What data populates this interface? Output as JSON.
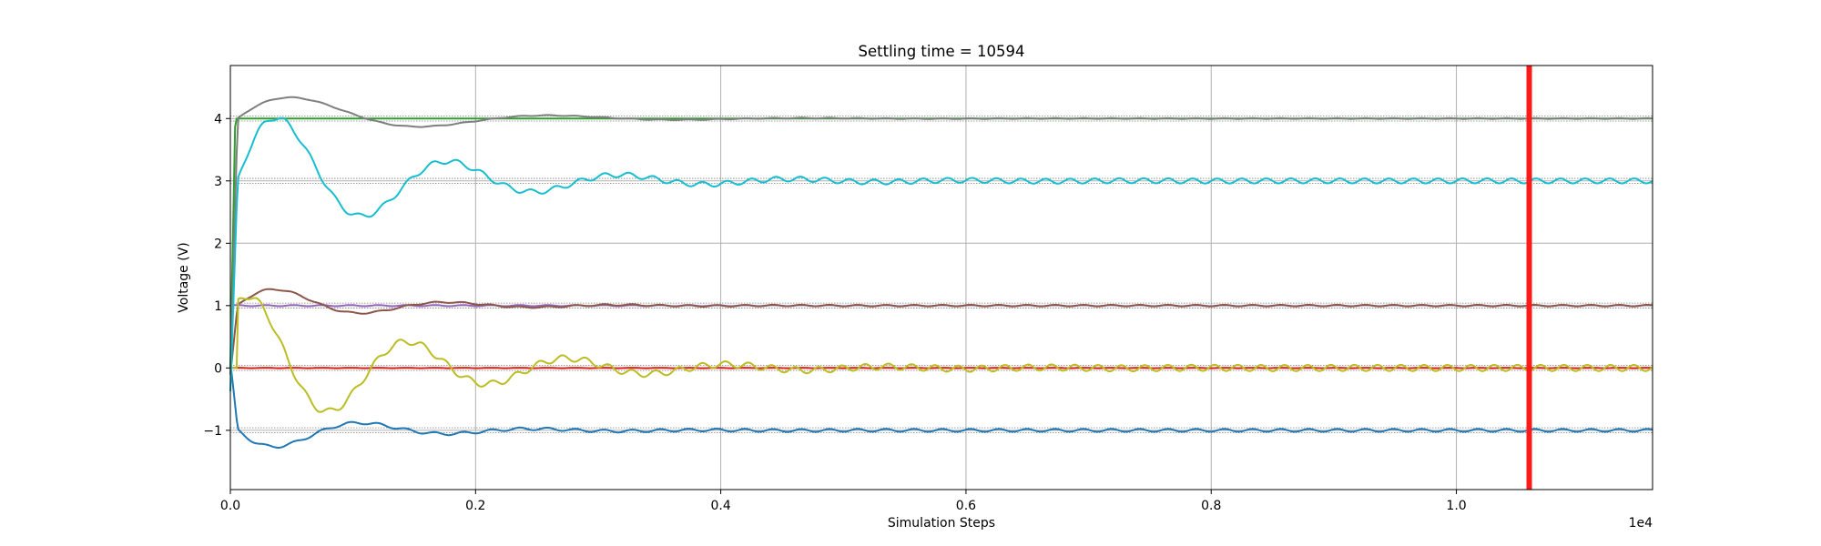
{
  "chart_data": {
    "type": "line",
    "title": "Settling time = 10594",
    "xlabel": "Simulation Steps",
    "ylabel": "Voltage (V)",
    "x_offset_text": "1e4",
    "xlim": [
      0,
      11600
    ],
    "ylim": [
      -1.95,
      4.85
    ],
    "x_ticks": [
      0,
      2000,
      4000,
      6000,
      8000,
      10000
    ],
    "x_tick_labels": [
      "0.0",
      "0.2",
      "0.4",
      "0.6",
      "0.8",
      "1.0"
    ],
    "y_ticks": [
      -1,
      0,
      1,
      2,
      3,
      4
    ],
    "y_tick_labels": [
      "−1",
      "0",
      "1",
      "2",
      "3",
      "4"
    ],
    "grid": true,
    "settling_time": 10594,
    "settling_marker_color": "#ff1a1a",
    "tolerance_band": 0.04,
    "series": [
      {
        "color": "#1f77b4",
        "target": -1,
        "initial": 0,
        "amp": 0.4,
        "decay": 900,
        "period": 1400,
        "ripple": 0.022,
        "ripple_period": 230,
        "style": "osc"
      },
      {
        "color": "#ff7f0e",
        "target": 0,
        "initial": 0,
        "amp": 0.0,
        "decay": 900,
        "period": 1400,
        "ripple": 0.004,
        "ripple_period": 230,
        "style": "flat"
      },
      {
        "color": "#2ca02c",
        "target": 4,
        "initial": 0,
        "amp": 0.0,
        "decay": 40,
        "period": 1400,
        "ripple": 0.0,
        "ripple_period": 230,
        "style": "step"
      },
      {
        "color": "#d62728",
        "target": 0,
        "initial": 0,
        "amp": 0.0,
        "decay": 900,
        "period": 1400,
        "ripple": 0.003,
        "ripple_period": 230,
        "style": "flat"
      },
      {
        "color": "#9467bd",
        "target": 1,
        "initial": 0,
        "amp": 0.0,
        "decay": 900,
        "period": 1400,
        "ripple": 0.01,
        "ripple_period": 230,
        "style": "flat"
      },
      {
        "color": "#8c564b",
        "target": 1,
        "initial": 0,
        "amp": 0.4,
        "decay": 900,
        "period": 1400,
        "ripple": 0.012,
        "ripple_period": 230,
        "style": "osc"
      },
      {
        "color": "#7f7f7f",
        "target": 4,
        "initial": 0,
        "amp": 0.55,
        "decay": 1100,
        "period": 2100,
        "ripple": 0.006,
        "ripple_period": 230,
        "style": "osc"
      },
      {
        "color": "#bcbd22",
        "target": 0,
        "initial": 0,
        "amp": 1.3,
        "decay": 1300,
        "period": 1300,
        "ripple": 0.05,
        "ripple_period": 190,
        "style": "fast"
      },
      {
        "color": "#17becf",
        "target": 3,
        "initial": 0,
        "amp": 1.4,
        "decay": 1200,
        "period": 1400,
        "ripple": 0.04,
        "ripple_period": 200,
        "style": "osc"
      }
    ]
  }
}
